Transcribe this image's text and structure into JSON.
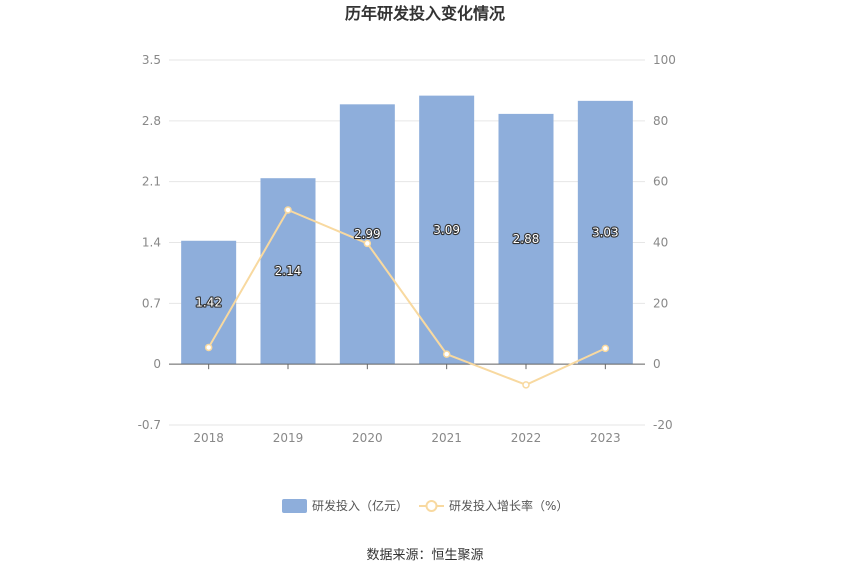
{
  "chart_data": {
    "type": "bar",
    "title": "历年研发投入变化情况",
    "categories": [
      "2018",
      "2019",
      "2020",
      "2021",
      "2022",
      "2023"
    ],
    "series": [
      {
        "name": "研发投入（亿元）",
        "type": "bar",
        "axis": "left",
        "color": "#8eaedb",
        "values": [
          1.42,
          2.14,
          2.99,
          3.09,
          2.88,
          3.03
        ],
        "labels": [
          "1.42",
          "2.14",
          "2.99",
          "3.09",
          "2.88",
          "3.03"
        ]
      },
      {
        "name": "研发投入增长率（%）",
        "type": "line",
        "axis": "right",
        "color": "#f8d9a0",
        "values": [
          5.5,
          50.7,
          39.7,
          3.3,
          -6.8,
          5.2
        ]
      }
    ],
    "y_left": {
      "min": -0.7,
      "max": 3.5,
      "ticks": [
        "-0.7",
        "0",
        "0.7",
        "1.4",
        "2.1",
        "2.8",
        "3.5"
      ]
    },
    "y_right": {
      "min": -20,
      "max": 100,
      "ticks": [
        "-20",
        "0",
        "20",
        "40",
        "60",
        "80",
        "100"
      ]
    },
    "grid": true,
    "legend_position": "bottom"
  },
  "source_text": "数据来源：恒生聚源"
}
